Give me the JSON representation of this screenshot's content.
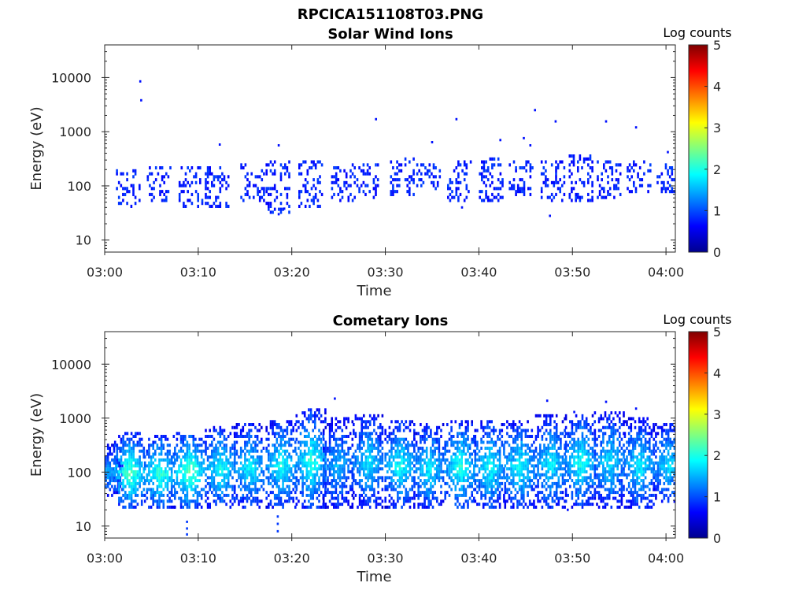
{
  "figure_title": "RPCICA151108T03.PNG",
  "chart_data": [
    {
      "type": "heatmap",
      "title": "Solar Wind Ions",
      "xlabel": "Time",
      "ylabel": "Energy (eV)",
      "x_ticks": [
        "03:00",
        "03:10",
        "03:20",
        "03:30",
        "03:40",
        "03:50",
        "04:00"
      ],
      "y_ticks": [
        "10",
        "100",
        "1000",
        "10000"
      ],
      "y_scale": "log",
      "xlim": [
        "03:00",
        "04:01"
      ],
      "ylim": [
        6,
        40000
      ],
      "colorbar": {
        "label": "Log counts",
        "range": [
          0,
          5
        ],
        "ticks": [
          "0",
          "1",
          "2",
          "3",
          "4",
          "5"
        ],
        "colormap": "jet"
      },
      "scans": [
        {
          "t": 2.5,
          "emin": 45,
          "emax": 190,
          "level": 0.8
        },
        {
          "t": 5.8,
          "emin": 55,
          "emax": 210,
          "level": 0.8
        },
        {
          "t": 9.2,
          "emin": 45,
          "emax": 210,
          "level": 0.8
        },
        {
          "t": 12.0,
          "emin": 45,
          "emax": 200,
          "level": 0.8
        },
        {
          "t": 15.8,
          "emin": 60,
          "emax": 220,
          "level": 0.7
        },
        {
          "t": 18.5,
          "emin": 35,
          "emax": 250,
          "level": 0.7
        },
        {
          "t": 22.0,
          "emin": 45,
          "emax": 280,
          "level": 0.8
        },
        {
          "t": 25.5,
          "emin": 60,
          "emax": 230,
          "level": 0.6
        },
        {
          "t": 28.2,
          "emin": 65,
          "emax": 240,
          "level": 0.6
        },
        {
          "t": 31.8,
          "emin": 70,
          "emax": 300,
          "level": 0.8
        },
        {
          "t": 34.6,
          "emin": 80,
          "emax": 240,
          "level": 0.8
        },
        {
          "t": 37.9,
          "emin": 60,
          "emax": 280,
          "level": 0.7
        },
        {
          "t": 41.3,
          "emin": 60,
          "emax": 300,
          "level": 0.8
        },
        {
          "t": 44.5,
          "emin": 70,
          "emax": 250,
          "level": 0.9
        },
        {
          "t": 47.9,
          "emin": 55,
          "emax": 260,
          "level": 0.6
        },
        {
          "t": 50.9,
          "emin": 55,
          "emax": 320,
          "level": 0.8
        },
        {
          "t": 53.9,
          "emin": 65,
          "emax": 280,
          "level": 0.9
        },
        {
          "t": 57.1,
          "emin": 80,
          "emax": 260,
          "level": 0.7
        },
        {
          "t": 60.3,
          "emin": 80,
          "emax": 220,
          "level": 0.7
        }
      ],
      "isolated": [
        {
          "t": 3.8,
          "e": 8500,
          "level": 0.7
        },
        {
          "t": 3.9,
          "e": 3800,
          "level": 0.7
        },
        {
          "t": 12.3,
          "e": 580,
          "level": 0.7
        },
        {
          "t": 18.6,
          "e": 560,
          "level": 0.7
        },
        {
          "t": 18.6,
          "e": 30,
          "level": 0.7
        },
        {
          "t": 19.2,
          "e": 38,
          "level": 0.7
        },
        {
          "t": 29.0,
          "e": 1700,
          "level": 0.7
        },
        {
          "t": 35.0,
          "e": 640,
          "level": 0.7
        },
        {
          "t": 37.6,
          "e": 1700,
          "level": 0.7
        },
        {
          "t": 38.2,
          "e": 40,
          "level": 0.7
        },
        {
          "t": 42.3,
          "e": 700,
          "level": 0.7
        },
        {
          "t": 44.8,
          "e": 760,
          "level": 0.7
        },
        {
          "t": 45.5,
          "e": 560,
          "level": 0.7
        },
        {
          "t": 46.0,
          "e": 2500,
          "level": 0.7
        },
        {
          "t": 47.6,
          "e": 28,
          "level": 0.7
        },
        {
          "t": 48.2,
          "e": 1550,
          "level": 0.7
        },
        {
          "t": 53.6,
          "e": 1550,
          "level": 0.7
        },
        {
          "t": 56.8,
          "e": 1200,
          "level": 0.7
        },
        {
          "t": 60.2,
          "e": 420,
          "level": 0.7
        }
      ]
    },
    {
      "type": "heatmap",
      "title": "Cometary Ions",
      "xlabel": "Time",
      "ylabel": "Energy (eV)",
      "x_ticks": [
        "03:00",
        "03:10",
        "03:20",
        "03:30",
        "03:40",
        "03:50",
        "04:00"
      ],
      "y_ticks": [
        "10",
        "100",
        "1000",
        "10000"
      ],
      "y_scale": "log",
      "xlim": [
        "03:00",
        "04:01"
      ],
      "ylim": [
        6,
        40000
      ],
      "colorbar": {
        "label": "Log counts",
        "range": [
          0,
          5
        ],
        "ticks": [
          "0",
          "1",
          "2",
          "3",
          "4",
          "5"
        ],
        "colormap": "jet"
      },
      "scans": [
        {
          "t": 0.3,
          "emin": 40,
          "emax": 300,
          "level": 1.5
        },
        {
          "t": 2.6,
          "emin": 25,
          "emax": 500,
          "level": 2.3
        },
        {
          "t": 5.8,
          "emin": 25,
          "emax": 450,
          "level": 2.2
        },
        {
          "t": 9.0,
          "emin": 25,
          "emax": 500,
          "level": 2.4
        },
        {
          "t": 12.3,
          "emin": 25,
          "emax": 650,
          "level": 2.0
        },
        {
          "t": 15.4,
          "emin": 25,
          "emax": 700,
          "level": 1.9
        },
        {
          "t": 18.8,
          "emin": 25,
          "emax": 850,
          "level": 2.0
        },
        {
          "t": 22.0,
          "emin": 25,
          "emax": 1300,
          "level": 2.1
        },
        {
          "t": 24.9,
          "emin": 25,
          "emax": 900,
          "level": 1.6
        },
        {
          "t": 28.1,
          "emin": 25,
          "emax": 1100,
          "level": 1.8
        },
        {
          "t": 31.5,
          "emin": 25,
          "emax": 850,
          "level": 2.0
        },
        {
          "t": 34.6,
          "emin": 25,
          "emax": 700,
          "level": 1.9
        },
        {
          "t": 37.9,
          "emin": 25,
          "emax": 800,
          "level": 2.1
        },
        {
          "t": 41.1,
          "emin": 25,
          "emax": 800,
          "level": 2.0
        },
        {
          "t": 44.3,
          "emin": 25,
          "emax": 800,
          "level": 2.0
        },
        {
          "t": 47.6,
          "emin": 25,
          "emax": 1000,
          "level": 1.9
        },
        {
          "t": 50.8,
          "emin": 25,
          "emax": 1100,
          "level": 2.0
        },
        {
          "t": 53.9,
          "emin": 25,
          "emax": 1200,
          "level": 1.8
        },
        {
          "t": 57.1,
          "emin": 25,
          "emax": 900,
          "level": 1.9
        },
        {
          "t": 60.2,
          "emin": 30,
          "emax": 750,
          "level": 1.8
        }
      ],
      "isolated": [
        {
          "t": 24.6,
          "e": 2300,
          "level": 0.7
        },
        {
          "t": 47.3,
          "e": 2100,
          "level": 0.7
        },
        {
          "t": 53.6,
          "e": 2000,
          "level": 0.7
        },
        {
          "t": 50.2,
          "e": 1300,
          "level": 0.7
        },
        {
          "t": 56.8,
          "e": 1500,
          "level": 0.7
        },
        {
          "t": 49.5,
          "e": 20,
          "level": 0.7
        },
        {
          "t": 8.8,
          "e": 7,
          "level": 0.9
        },
        {
          "t": 8.8,
          "e": 9,
          "level": 0.9
        },
        {
          "t": 8.8,
          "e": 12,
          "level": 0.9
        },
        {
          "t": 18.5,
          "e": 8,
          "level": 0.9
        },
        {
          "t": 18.5,
          "e": 11,
          "level": 0.9
        },
        {
          "t": 18.5,
          "e": 15,
          "level": 0.9
        }
      ]
    }
  ]
}
